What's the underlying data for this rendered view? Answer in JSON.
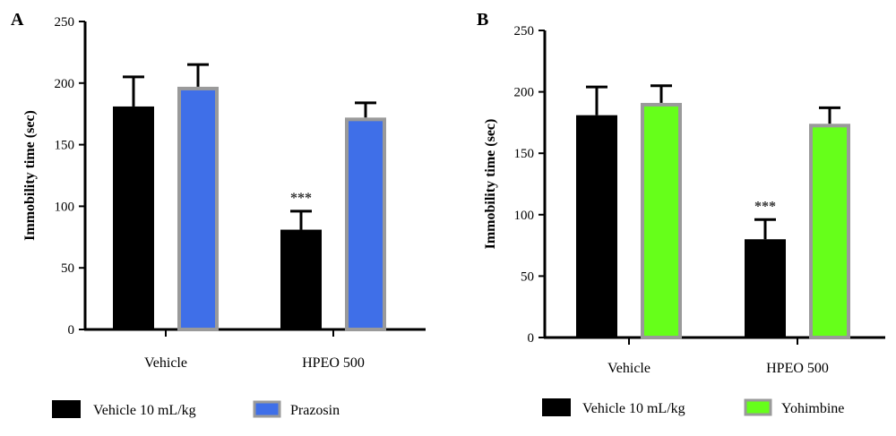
{
  "chart_data": [
    {
      "type": "bar",
      "panel_label": "A",
      "categories": [
        "Vehicle",
        "HPEO 500"
      ],
      "series": [
        {
          "name": "Vehicle 10 mL/kg",
          "values": [
            181,
            81
          ],
          "errors": [
            24,
            15
          ],
          "color": "#000000"
        },
        {
          "name": "Prazosin",
          "values": [
            197,
            172
          ],
          "errors": [
            18,
            12
          ],
          "color": "#3f6fe8"
        }
      ],
      "annotations": [
        {
          "category": "HPEO 500",
          "series": "Vehicle 10 mL/kg",
          "text": "***"
        }
      ],
      "ylabel": "Immobility time (sec)",
      "xlabel": "",
      "ylim": [
        0,
        250
      ],
      "yticks": [
        0,
        50,
        100,
        150,
        200,
        250
      ],
      "legend_placement": "bottom"
    },
    {
      "type": "bar",
      "panel_label": "B",
      "categories": [
        "Vehicle",
        "HPEO 500"
      ],
      "series": [
        {
          "name": "Vehicle 10 mL/kg",
          "values": [
            181,
            80
          ],
          "errors": [
            23,
            16
          ],
          "color": "#000000"
        },
        {
          "name": "Yohimbine",
          "values": [
            191,
            174
          ],
          "errors": [
            14,
            13
          ],
          "color": "#66ff1a"
        }
      ],
      "annotations": [
        {
          "category": "HPEO 500",
          "series": "Vehicle 10 mL/kg",
          "text": "***"
        }
      ],
      "ylabel": "Immobility time (sec)",
      "xlabel": "",
      "ylim": [
        0,
        250
      ],
      "yticks": [
        0,
        50,
        100,
        150,
        200,
        250
      ],
      "legend_placement": "bottom"
    }
  ]
}
